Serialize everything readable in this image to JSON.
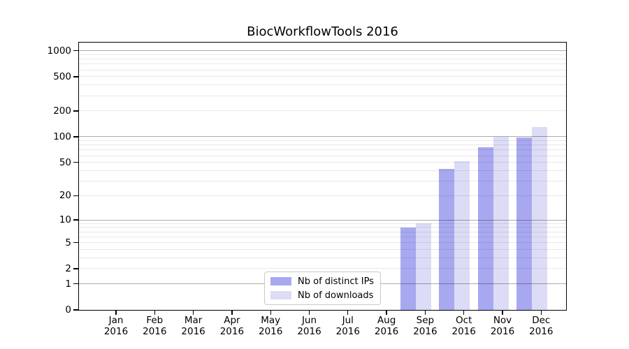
{
  "chart_data": {
    "type": "bar",
    "title": "BiocWorkflowTools 2016",
    "x_month_labels": [
      "Jan",
      "Feb",
      "Mar",
      "Apr",
      "May",
      "Jun",
      "Jul",
      "Aug",
      "Sep",
      "Oct",
      "Nov",
      "Dec"
    ],
    "x_year_label": "2016",
    "series": [
      {
        "name": "Nb of distinct IPs",
        "color": "#a8a8f0",
        "values": [
          0,
          0,
          0,
          0,
          0,
          0,
          0,
          0,
          8,
          42,
          76,
          98
        ]
      },
      {
        "name": "Nb of downloads",
        "color": "#dcdcf6",
        "values": [
          0,
          0,
          0,
          0,
          0,
          0,
          0,
          0,
          9,
          52,
          100,
          130
        ]
      }
    ],
    "y_scale": "log1p",
    "y_tick_values": [
      0,
      1,
      2,
      5,
      10,
      20,
      50,
      100,
      200,
      500,
      1000
    ],
    "y_major_gridlines": [
      1,
      10,
      100,
      1000
    ],
    "y_minor_gridlines": [
      2,
      3,
      4,
      5,
      6,
      7,
      8,
      9,
      20,
      30,
      40,
      50,
      60,
      70,
      80,
      90,
      200,
      300,
      400,
      500,
      600,
      700,
      800,
      900
    ],
    "ylim": [
      0,
      1250
    ],
    "grid": "horizontal",
    "legend_position": "lower center"
  },
  "colors": {
    "background": "#ffffff",
    "spine": "#000000",
    "bar_distinct_ips": "#a8a8f0",
    "bar_downloads": "#dcdcf6",
    "major_grid": "#aaaaaa",
    "minor_grid": "#e8e8e8",
    "legend_border": "#c9c9c9",
    "text": "#000000"
  }
}
